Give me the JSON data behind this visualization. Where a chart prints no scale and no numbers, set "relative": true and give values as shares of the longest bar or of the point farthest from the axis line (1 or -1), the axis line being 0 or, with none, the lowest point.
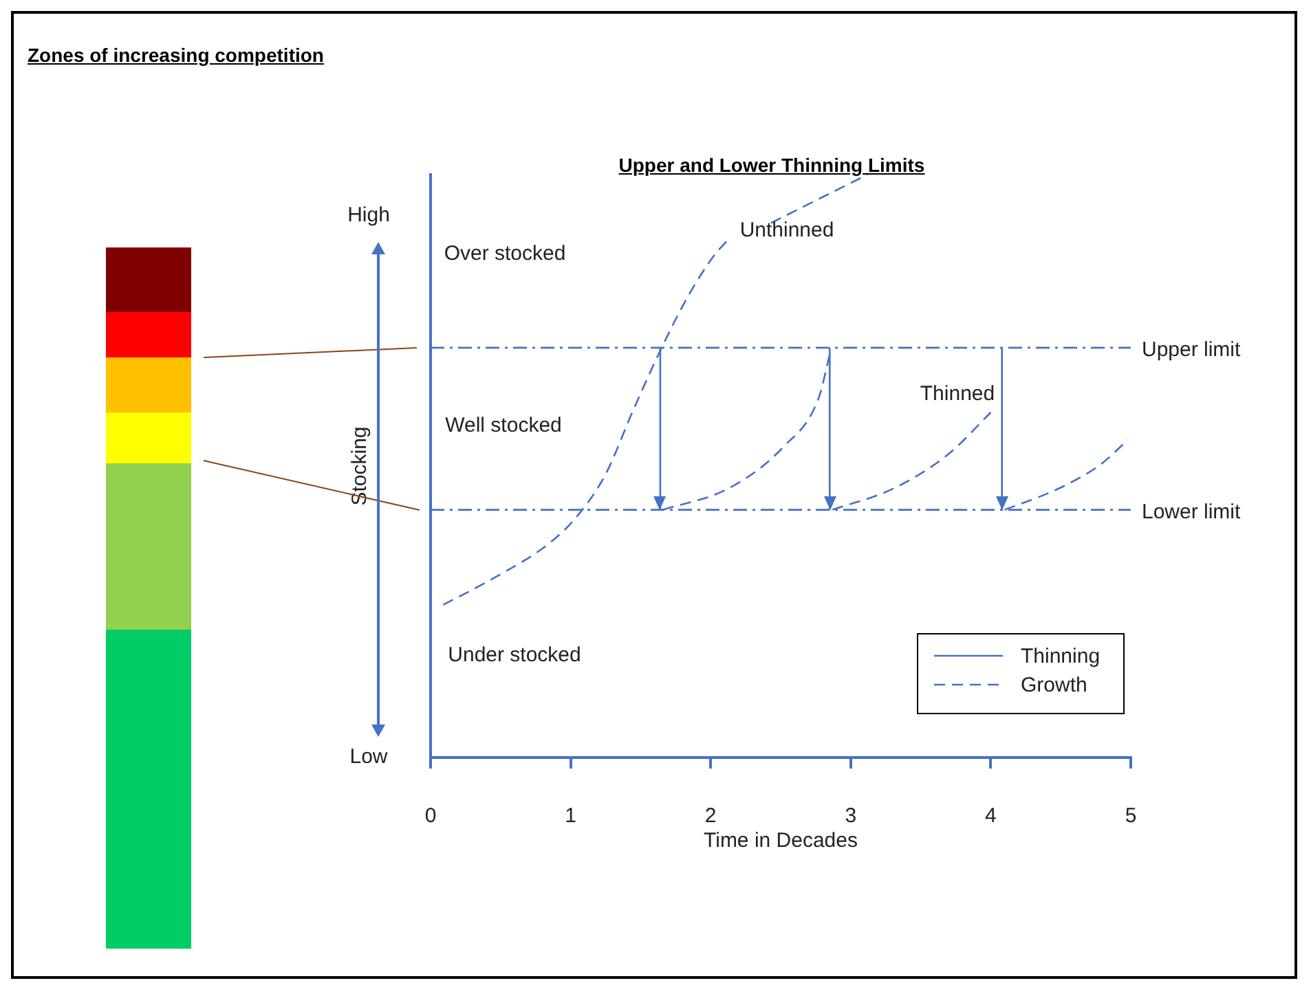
{
  "chart_data": {
    "type": "line",
    "title": "Zones of increasing competition",
    "subtitle": "Upper and Lower Thinning Limits",
    "xlabel": "Time in Decades",
    "ylabel": "Stocking",
    "relative": true,
    "xlim": [
      0,
      5
    ],
    "xticks": [
      0,
      1,
      2,
      3,
      4,
      5
    ],
    "grid": false,
    "legend": "bottom right",
    "marker": "none",
    "series": [
      {
        "name": "Thinning",
        "color": "#4472c4",
        "line_style": "solid",
        "x": [
          1.64,
          1.64,
          null,
          2.85,
          2.85,
          null,
          4.08,
          4.08
        ],
        "values": [
          0.703,
          0.425,
          null,
          0.703,
          0.425,
          null,
          0.703,
          0.425
        ]
      },
      {
        "name": "Growth",
        "color": "#4472c4",
        "line_style": "dashed",
        "x": [
          0.09,
          0.46,
          0.85,
          1.05,
          1.25,
          1.44,
          1.64,
          1.84,
          2.03,
          2.12,
          null,
          2.43,
          3.12,
          null,
          1.66,
          2.13,
          2.52,
          2.77,
          2.85,
          null,
          2.87,
          3.31,
          3.7,
          4.0,
          null,
          4.1,
          4.49,
          4.78,
          4.98
        ],
        "values": [
          0.262,
          0.309,
          0.368,
          0.415,
          0.486,
          0.592,
          0.698,
          0.792,
          0.863,
          0.887,
          null,
          0.917,
          1.0,
          null,
          0.425,
          0.462,
          0.533,
          0.616,
          0.691,
          null,
          0.425,
          0.462,
          0.521,
          0.592,
          null,
          0.425,
          0.462,
          0.502,
          0.545
        ]
      }
    ],
    "ref_lines": [
      {
        "axis": "y",
        "value": 0.703,
        "label": "Upper limit",
        "color": "#4472c4",
        "line_style": "dashdot"
      },
      {
        "axis": "y",
        "value": 0.425,
        "label": "Lower limit",
        "color": "#4472c4",
        "line_style": "dashdot"
      }
    ],
    "annotations": [
      "High",
      "Low",
      "Over stocked",
      "Well stocked",
      "Under stocked",
      "Unthinned",
      "Thinned"
    ]
  }
}
